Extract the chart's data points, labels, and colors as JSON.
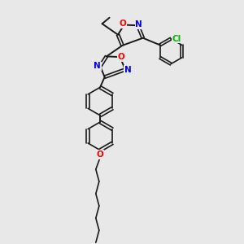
{
  "background_color": "#e8e8e8",
  "bond_color": "#1a1a1a",
  "atom_colors": {
    "O": "#ff0000",
    "N": "#0000ff",
    "Cl": "#00bb00",
    "C": "#1a1a1a"
  },
  "xlim": [
    0,
    10
  ],
  "ylim": [
    0,
    10
  ]
}
